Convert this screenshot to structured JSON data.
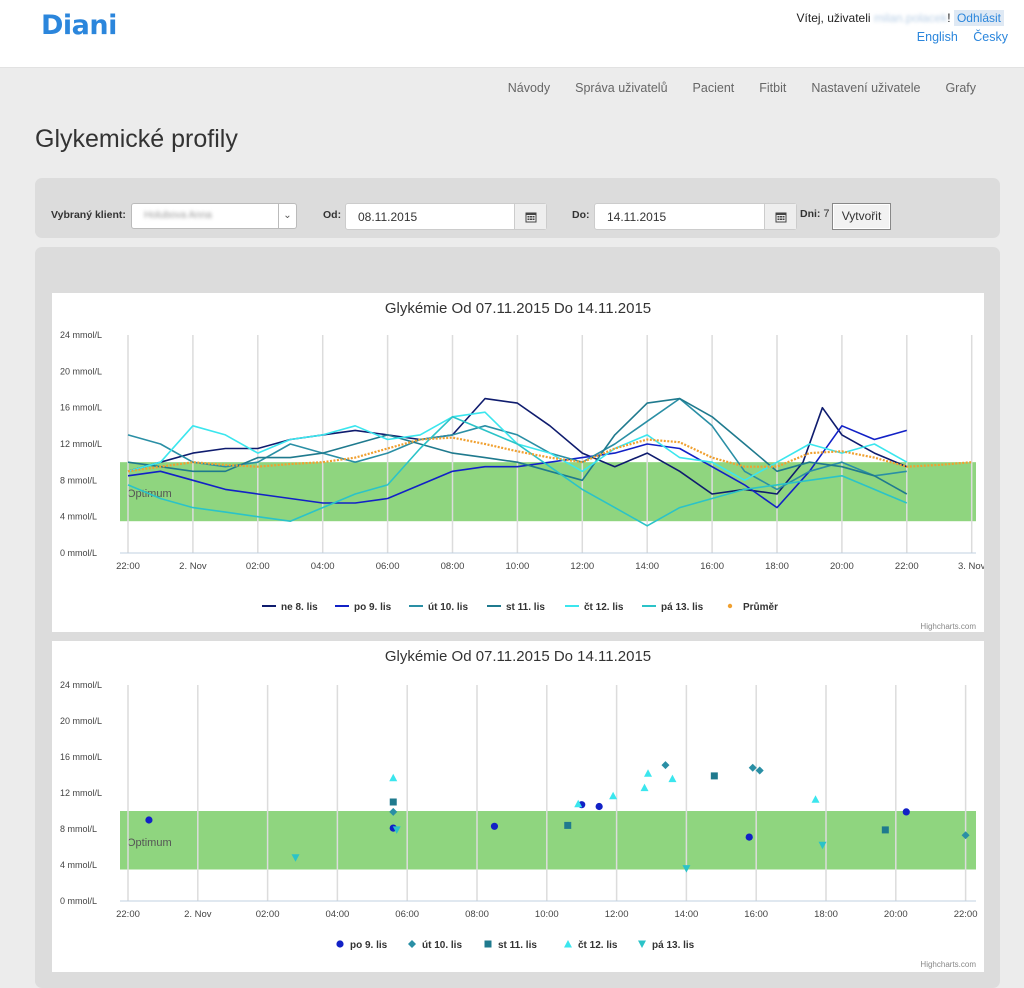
{
  "header": {
    "logo": "Diani",
    "welcome_prefix": "Vítej, uživateli",
    "username": "milan.polacek",
    "excl": "!",
    "logout": "Odhlásit",
    "languages": [
      "English",
      "Česky"
    ]
  },
  "nav": {
    "items": [
      "Návody",
      "Správa uživatelů",
      "Pacient",
      "Fitbit",
      "Nastavení uživatele",
      "Grafy"
    ]
  },
  "page_title": "Glykemické profily",
  "filter": {
    "client_label": "Vybraný klient:",
    "client_value": "Holubova Anna",
    "from_label": "Od:",
    "from_value": "08.11.2015",
    "to_label": "Do:",
    "to_value": "14.11.2015",
    "days_label": "Dni:",
    "days_value": "7",
    "create_button": "Vytvořit"
  },
  "colors": {
    "brand": "#2b86dc",
    "optimum_band": "#8fd57f",
    "ne": "#0f1c6e",
    "po": "#1221c6",
    "ut": "#2a8fa5",
    "st": "#1f7a8e",
    "ct": "#3be6ee",
    "pa": "#2bc3c8",
    "avg": "#f0a030"
  },
  "chart_data": [
    {
      "type": "line",
      "title": "Glykémie Od 07.11.2015 Do 14.11.2015",
      "yunit": "mmol/L",
      "ylim": [
        0,
        24
      ],
      "yticks": [
        "0 mmol/L",
        "4 mmol/L",
        "8 mmol/L",
        "12 mmol/L",
        "16 mmol/L",
        "20 mmol/L",
        "24 mmol/L"
      ],
      "xticks": [
        "22:00",
        "2. Nov",
        "02:00",
        "04:00",
        "06:00",
        "08:00",
        "10:00",
        "12:00",
        "14:00",
        "16:00",
        "18:00",
        "20:00",
        "22:00",
        "3. Nov"
      ],
      "xlim_hours": [
        -2,
        24.3
      ],
      "band": {
        "label": "Optimum",
        "from": 3.5,
        "to": 10
      },
      "credits": "Highcharts.com",
      "series": [
        {
          "name": "ne 8. lis",
          "color": "#0f1c6e",
          "x": [
            -2,
            -1,
            0,
            1,
            2,
            3,
            4,
            5,
            6,
            7,
            8,
            9,
            10,
            11,
            12,
            13,
            14,
            15,
            16,
            17,
            18,
            18.8,
            19.4,
            20,
            21,
            22
          ],
          "y": [
            9,
            10,
            11,
            11.5,
            11.5,
            12.5,
            13,
            13.5,
            13,
            12.5,
            13,
            17,
            16.5,
            14,
            11,
            9.5,
            11,
            9,
            6.5,
            7,
            6.5,
            10,
            16,
            13,
            11,
            9.5
          ]
        },
        {
          "name": "po 9. lis",
          "color": "#1221c6",
          "x": [
            -2,
            -1,
            0,
            1,
            2,
            3,
            4,
            5,
            6,
            7,
            8,
            9,
            10,
            11,
            12,
            13,
            14,
            15,
            16,
            17,
            18,
            19,
            20,
            21,
            22
          ],
          "y": [
            8.5,
            9,
            8,
            7,
            6.5,
            6,
            5.5,
            5.5,
            6,
            7.5,
            9,
            9.5,
            9.5,
            10,
            10.5,
            11,
            12,
            11.5,
            9.5,
            7.5,
            5,
            9,
            14,
            12.5,
            13.5
          ]
        },
        {
          "name": "út 10. lis",
          "color": "#2a8fa5",
          "x": [
            -2,
            -1,
            0,
            1,
            2,
            3,
            4,
            5,
            6,
            7,
            8,
            9,
            10,
            11,
            12,
            13,
            14,
            15,
            16,
            17,
            18,
            19,
            20,
            21,
            22
          ],
          "y": [
            13,
            12,
            10,
            9.5,
            10,
            12,
            11,
            10,
            11,
            12.5,
            13,
            14,
            13,
            11,
            10,
            12,
            14.5,
            17,
            14,
            9,
            7,
            9,
            10,
            8.5,
            9
          ]
        },
        {
          "name": "st 11. lis",
          "color": "#1f7a8e",
          "x": [
            -2,
            -1,
            0,
            1,
            2,
            3,
            4,
            5,
            6,
            7,
            8,
            9,
            10,
            11,
            12,
            13,
            14,
            15,
            16,
            17,
            18,
            19,
            20,
            21,
            22
          ],
          "y": [
            10,
            9.5,
            9,
            9,
            10.5,
            10.5,
            11,
            12,
            13,
            12,
            11,
            10.5,
            10,
            9,
            8,
            13,
            16.5,
            17,
            15,
            12,
            9,
            10,
            9.5,
            8.5,
            6.5
          ]
        },
        {
          "name": "čt 12. lis",
          "color": "#3be6ee",
          "x": [
            -2,
            -1,
            0,
            1,
            2,
            3,
            4,
            5,
            6,
            7,
            8,
            9,
            10,
            11,
            12,
            13,
            14,
            15,
            16,
            17,
            18,
            19,
            20,
            21,
            22
          ],
          "y": [
            9,
            10,
            14,
            13,
            11,
            12.5,
            13,
            14,
            12.5,
            13,
            15,
            15.5,
            12,
            11,
            9,
            11.5,
            13,
            10.5,
            10,
            8,
            10,
            12,
            11,
            12,
            10
          ]
        },
        {
          "name": "pá 13. lis",
          "color": "#2bc3c8",
          "x": [
            -2,
            -1,
            0,
            1,
            2,
            3,
            4,
            5,
            6,
            7,
            8,
            9,
            10,
            11,
            12,
            13,
            14,
            15,
            16,
            17,
            18,
            19,
            20,
            21,
            22
          ],
          "y": [
            7.5,
            6,
            5,
            4.5,
            4,
            3.5,
            5,
            6.5,
            7.5,
            11.5,
            15,
            13.5,
            12,
            9.5,
            7,
            5,
            3,
            5,
            6,
            7,
            7.5,
            8,
            8.5,
            7,
            5.5
          ]
        },
        {
          "name": "Průměr",
          "color": "#f0a030",
          "x": [
            -2,
            -1,
            0,
            1,
            2,
            3,
            4,
            5,
            6,
            7,
            8,
            9,
            10,
            11,
            12,
            13,
            14,
            15,
            16,
            17,
            18,
            19,
            20,
            21,
            22,
            23,
            24
          ],
          "y": [
            9,
            9.5,
            10,
            9.7,
            9.5,
            9.8,
            10,
            10.5,
            11.5,
            12.5,
            12.7,
            12,
            11.2,
            10.5,
            10,
            11.5,
            12.5,
            12.2,
            10.5,
            9.5,
            9.5,
            11,
            11.2,
            10.5,
            9.5,
            9.7,
            10
          ]
        }
      ]
    },
    {
      "type": "scatter",
      "title": "Glykémie Od 07.11.2015 Do 14.11.2015",
      "yunit": "mmol/L",
      "ylim": [
        0,
        24
      ],
      "yticks": [
        "0 mmol/L",
        "4 mmol/L",
        "8 mmol/L",
        "12 mmol/L",
        "16 mmol/L",
        "20 mmol/L",
        "24 mmol/L"
      ],
      "xticks": [
        "22:00",
        "2. Nov",
        "02:00",
        "04:00",
        "06:00",
        "08:00",
        "10:00",
        "12:00",
        "14:00",
        "16:00",
        "18:00",
        "20:00",
        "22:00"
      ],
      "xlim_hours": [
        -2,
        22.3
      ],
      "band": {
        "label": "Optimum",
        "from": 3.5,
        "to": 10
      },
      "credits": "Highcharts.com",
      "series": [
        {
          "name": "po 9. lis",
          "marker": "circle",
          "color": "#1221c6",
          "x": [
            -1.4,
            5.6,
            8.5,
            11,
            11.5,
            15.8,
            20.3
          ],
          "y": [
            9,
            8.1,
            8.3,
            10.7,
            10.5,
            7.1,
            9.9
          ]
        },
        {
          "name": "út 10. lis",
          "marker": "diamond",
          "color": "#2a8fa5",
          "x": [
            5.6,
            13.4,
            15.9,
            16.1,
            22
          ],
          "y": [
            9.9,
            15.1,
            14.8,
            14.5,
            7.3
          ]
        },
        {
          "name": "st 11. lis",
          "marker": "square",
          "color": "#1f7a8e",
          "x": [
            5.6,
            10.6,
            14.8,
            19.7
          ],
          "y": [
            11,
            8.4,
            13.9,
            7.9
          ]
        },
        {
          "name": "čt 12. lis",
          "marker": "triangle",
          "color": "#3be6ee",
          "x": [
            5.6,
            10.9,
            11.9,
            12.8,
            12.9,
            13.6,
            17.7
          ],
          "y": [
            13.7,
            10.8,
            11.7,
            12.6,
            14.2,
            13.6,
            11.3
          ]
        },
        {
          "name": "pá 13. lis",
          "marker": "triangle-down",
          "color": "#2bc3c8",
          "x": [
            2.8,
            5.7,
            14,
            17.9
          ],
          "y": [
            4.8,
            7.9,
            3.6,
            6.2
          ]
        }
      ]
    }
  ]
}
